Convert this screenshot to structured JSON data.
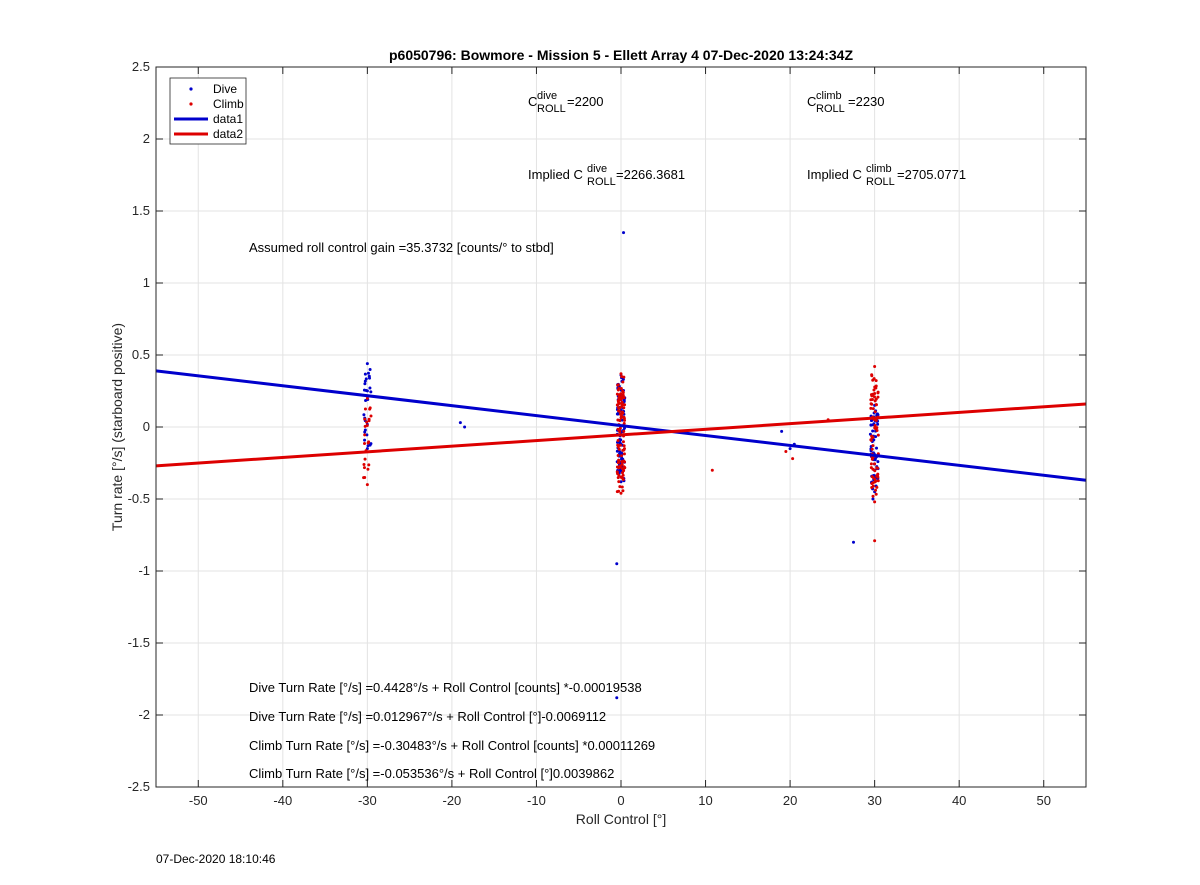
{
  "chart_data": {
    "type": "scatter",
    "title": "p6050796: Bowmore - Mission 5 - Ellett Array 4 07-Dec-2020 13:24:34Z",
    "xlabel": "Roll Control [°]",
    "ylabel": "Turn rate [°/s] (starboard positive)",
    "xlim": [
      -55,
      55
    ],
    "ylim": [
      -2.5,
      2.5
    ],
    "xticks": [
      -50,
      -40,
      -30,
      -20,
      -10,
      0,
      10,
      20,
      30,
      40,
      50
    ],
    "yticks": [
      -2.5,
      -2,
      -1.5,
      -1,
      -0.5,
      0,
      0.5,
      1,
      1.5,
      2,
      2.5
    ],
    "grid": true,
    "legend_position": "top-left",
    "series": [
      {
        "name": "Dive",
        "kind": "points",
        "color": "#0000cc",
        "clusters": [
          {
            "x": -30,
            "y_min": -0.15,
            "y_max": 0.44,
            "n": 28
          },
          {
            "x": 0,
            "y_min": -0.38,
            "y_max": 0.36,
            "n": 90
          },
          {
            "x": 30,
            "y_min": -0.45,
            "y_max": 0.15,
            "n": 60
          }
        ],
        "points": [
          [
            -19,
            0.03
          ],
          [
            -18.5,
            0
          ],
          [
            0.3,
            1.35
          ],
          [
            -0.5,
            -0.95
          ],
          [
            -0.5,
            -1.88
          ],
          [
            19,
            -0.03
          ],
          [
            20,
            -0.15
          ],
          [
            20.5,
            -0.12
          ],
          [
            27.5,
            -0.8
          ],
          [
            29.5,
            -0.05
          ],
          [
            29.8,
            -0.5
          ]
        ]
      },
      {
        "name": "Climb",
        "kind": "points",
        "color": "#dd0000",
        "clusters": [
          {
            "x": -30,
            "y_min": -0.4,
            "y_max": 0.2,
            "n": 22
          },
          {
            "x": 0,
            "y_min": -0.46,
            "y_max": 0.37,
            "n": 110
          },
          {
            "x": 30,
            "y_min": -0.52,
            "y_max": 0.42,
            "n": 80
          }
        ],
        "points": [
          [
            10.8,
            -0.3
          ],
          [
            19.5,
            -0.17
          ],
          [
            20.3,
            -0.22
          ],
          [
            24.5,
            0.05
          ],
          [
            30,
            -0.79
          ]
        ]
      },
      {
        "name": "data1",
        "kind": "line",
        "color": "#0000cc",
        "x": [
          -55,
          55
        ],
        "y": [
          0.39,
          -0.37
        ]
      },
      {
        "name": "data2",
        "kind": "line",
        "color": "#dd0000",
        "x": [
          -55,
          55
        ],
        "y": [
          -0.27,
          0.16
        ]
      }
    ],
    "annotations": {
      "c_dive": {
        "base": "C",
        "sup": "dive",
        "sub": "ROLL",
        "value": "=2200"
      },
      "c_climb": {
        "base": "C",
        "sup": "climb",
        "sub": "ROLL",
        "value": "=2230"
      },
      "implied_dive": {
        "prefix": "Implied C",
        "sup": "dive",
        "sub": "ROLL",
        "value": "=2266.3681"
      },
      "implied_climb": {
        "prefix": "Implied C",
        "sup": "climb",
        "sub": "ROLL",
        "value": "=2705.0771"
      },
      "gain": "Assumed roll control gain =35.3732 [counts/° to stbd]",
      "eq1": "Dive Turn Rate [°/s] =0.4428°/s + Roll Control [counts] *-0.00019538",
      "eq2": "Dive Turn Rate [°/s] =0.012967°/s + Roll Control [°]-0.0069112",
      "eq3": "Climb Turn Rate [°/s] =-0.30483°/s + Roll Control [counts] *0.00011269",
      "eq4": "Climb Turn Rate [°/s] =-0.053536°/s + Roll Control [°]0.0039862"
    }
  },
  "footer": {
    "timestamp": "07-Dec-2020 18:10:46"
  }
}
